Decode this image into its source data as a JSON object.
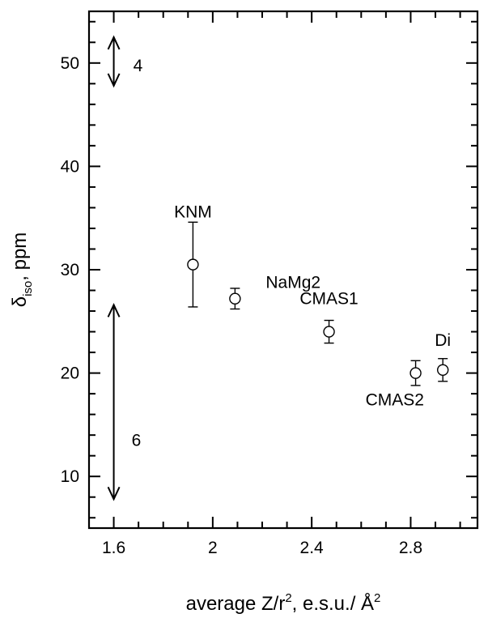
{
  "chart_data": {
    "type": "scatter",
    "xlabel": {
      "main": "average Z/r",
      "main_sup": "2",
      "unit": "e.s.u./ Å",
      "unit_sup": "2"
    },
    "ylabel": {
      "symbol": "δ",
      "sub": "iso",
      "unit": ", ppm"
    },
    "xlim": [
      1.5,
      3.07
    ],
    "ylim": [
      5,
      55
    ],
    "x_ticks": [
      1.6,
      2.0,
      2.4,
      2.8
    ],
    "x_tick_labels": [
      "1.6",
      "2",
      "2.4",
      "2.8"
    ],
    "x_minor_step": 0.1,
    "y_ticks": [
      10,
      20,
      30,
      40,
      50
    ],
    "y_tick_labels": [
      "10",
      "20",
      "30",
      "40",
      "50"
    ],
    "y_minor_step": 2,
    "grid": false,
    "points": [
      {
        "label": "KNM",
        "x": 1.92,
        "y": 30.5,
        "err_low": 26.4,
        "err_high": 34.6
      },
      {
        "label": "NaMg2",
        "x": 2.09,
        "y": 27.2,
        "err_low": 26.2,
        "err_high": 28.2
      },
      {
        "label": "CMAS1",
        "x": 2.47,
        "y": 24.0,
        "err_low": 22.9,
        "err_high": 25.1
      },
      {
        "label": "CMAS2",
        "x": 2.82,
        "y": 20.0,
        "err_low": 18.8,
        "err_high": 21.2
      },
      {
        "label": "Di",
        "x": 2.93,
        "y": 20.3,
        "err_low": 19.2,
        "err_high": 21.4
      }
    ],
    "annotations": [
      {
        "type": "range-arrow",
        "label": "4",
        "x": 1.6,
        "y_from": 47.8,
        "y_to": 52.5
      },
      {
        "type": "range-arrow",
        "label": "6",
        "x": 1.6,
        "y_from": 7.8,
        "y_to": 26.6
      }
    ]
  }
}
